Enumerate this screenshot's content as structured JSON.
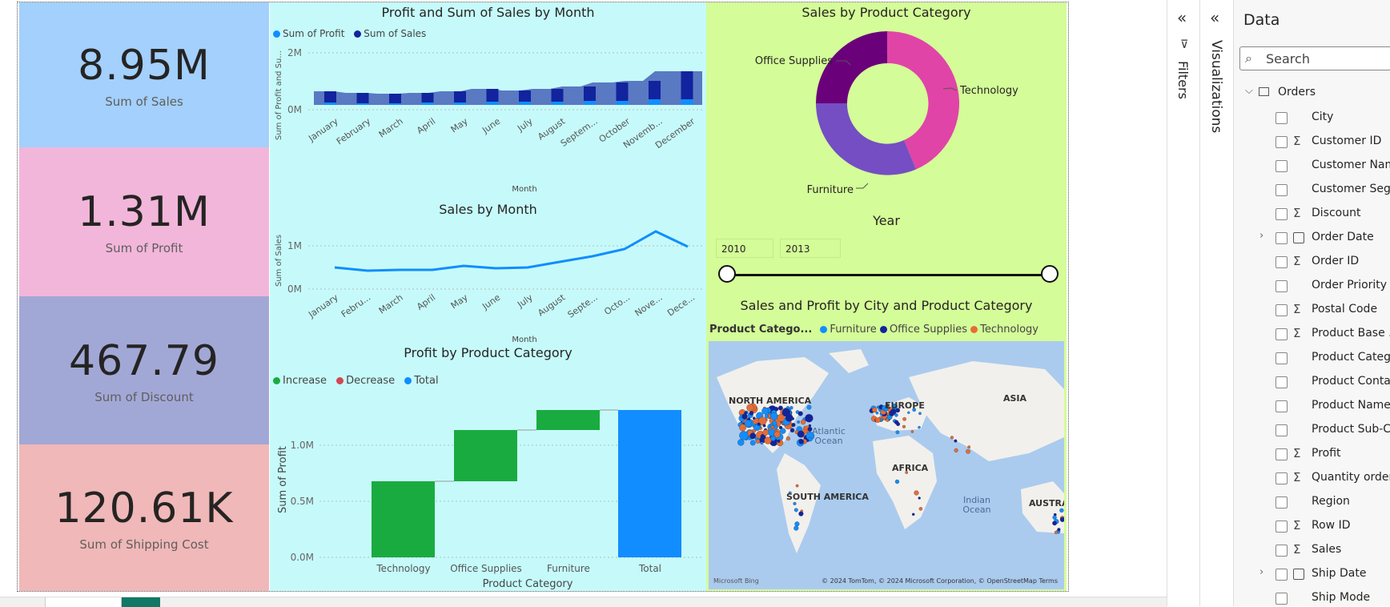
{
  "kpis": [
    {
      "value": "8.95M",
      "label": "Sum of Sales",
      "bg": "#a3d0fc"
    },
    {
      "value": "1.31M",
      "label": "Sum of Profit",
      "bg": "#f2b6da"
    },
    {
      "value": "467.79",
      "label": "Sum of Discount",
      "bg": "#a2a8d6"
    },
    {
      "value": "120.61K",
      "label": "Sum of Shipping Cost",
      "bg": "#f0b8b8"
    }
  ],
  "profit_sales_chart": {
    "title": "Profit and Sum of Sales by Month",
    "legend": [
      "Sum of Profit",
      "Sum of Sales"
    ],
    "ylabel": "Sum of Profit and Su...",
    "xlabel": "Month",
    "yticks": [
      "2M",
      "0M"
    ],
    "xticks": [
      "January",
      "February",
      "March",
      "April",
      "May",
      "June",
      "July",
      "August",
      "Septem...",
      "October",
      "Novemb...",
      "December"
    ]
  },
  "sales_month_chart": {
    "title": "Sales by Month",
    "ylabel": "Sum of Sales",
    "xlabel": "Month",
    "yticks": [
      "1M",
      "0M"
    ],
    "xticks": [
      "January",
      "Febru...",
      "March",
      "April",
      "May",
      "June",
      "July",
      "August",
      "Septe...",
      "Octo...",
      "Nove...",
      "Dece..."
    ]
  },
  "category_donut": {
    "title": "Sales by Product Category",
    "labels": [
      "Office Supplies",
      "Technology",
      "Furniture"
    ]
  },
  "year_slicer": {
    "title": "Year",
    "from": "2010",
    "to": "2013"
  },
  "waterfall": {
    "title": "Profit by Product Category",
    "legend": [
      "Increase",
      "Decrease",
      "Total"
    ],
    "ylabel": "Sum of Profit",
    "xlabel": "Product Category",
    "yticks": [
      "1.0M",
      "0.5M",
      "0.0M"
    ]
  },
  "map_visual": {
    "title": "Sales and Profit by City and Product Category",
    "legend_title": "Product Catego...",
    "legend": [
      "Furniture",
      "Office Supplies",
      "Technology"
    ],
    "labels": [
      "NORTH AMERICA",
      "EUROPE",
      "ASIA",
      "Atlantic",
      "Ocean",
      "AFRICA",
      "SOUTH AMERICA",
      "Indian",
      "Ocean",
      "AUSTRAL"
    ],
    "bing": "Microsoft Bing",
    "attribution": "© 2024 TomTom, © 2024 Microsoft Corporation, © OpenStreetMap  Terms"
  },
  "panes": {
    "filters": "Filters",
    "visualizations": "Visualizations",
    "data_title": "Data",
    "search_placeholder": "Search",
    "table_name": "Orders"
  },
  "fields": [
    {
      "name": "City",
      "kind": "text"
    },
    {
      "name": "Customer ID",
      "kind": "sum"
    },
    {
      "name": "Customer Nam",
      "kind": "text"
    },
    {
      "name": "Customer Seg...",
      "kind": "text"
    },
    {
      "name": "Discount",
      "kind": "sum"
    },
    {
      "name": "Order Date",
      "kind": "date"
    },
    {
      "name": "Order ID",
      "kind": "sum"
    },
    {
      "name": "Order Priority",
      "kind": "text"
    },
    {
      "name": "Postal Code",
      "kind": "sum"
    },
    {
      "name": "Product Base ...",
      "kind": "sum"
    },
    {
      "name": "Product Categ...",
      "kind": "text"
    },
    {
      "name": "Product Contai",
      "kind": "text"
    },
    {
      "name": "Product Name",
      "kind": "text"
    },
    {
      "name": "Product Sub-C...",
      "kind": "text"
    },
    {
      "name": "Profit",
      "kind": "sum"
    },
    {
      "name": "Quantity order...",
      "kind": "sum"
    },
    {
      "name": "Region",
      "kind": "text"
    },
    {
      "name": "Row ID",
      "kind": "sum"
    },
    {
      "name": "Sales",
      "kind": "sum"
    },
    {
      "name": "Ship Date",
      "kind": "date"
    },
    {
      "name": "Ship Mode",
      "kind": "text"
    }
  ],
  "colors": {
    "profit": "#118dff",
    "sales": "#12239e",
    "increase": "#1aab40",
    "decrease": "#d64550",
    "total": "#118dff",
    "office": "#6b007b",
    "technology": "#e044a7",
    "furniture": "#744ec2"
  }
}
